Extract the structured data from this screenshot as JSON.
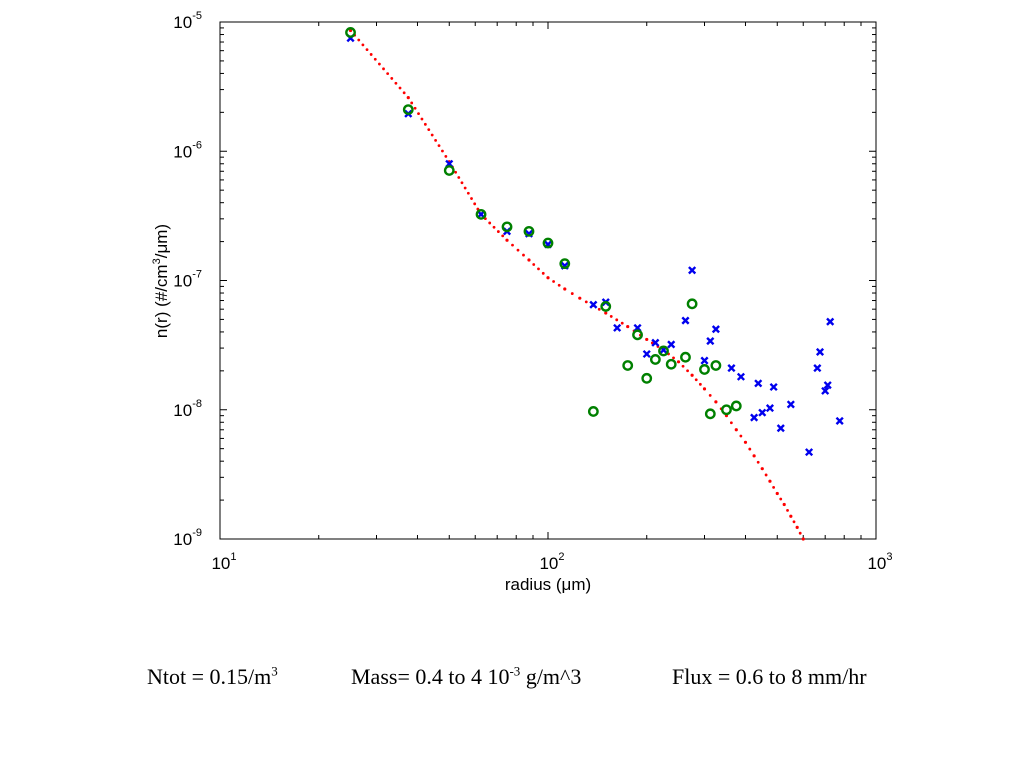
{
  "chart_data": {
    "type": "scatter",
    "xscale": "log",
    "yscale": "log",
    "xlim": [
      10,
      1000
    ],
    "ylim": [
      1e-09,
      1e-05
    ],
    "xlabel": {
      "pre": "radius (",
      "mu": "μ",
      "post": "m)"
    },
    "ylabel": {
      "pre": "n(r) (#/cm",
      "sup": "3",
      "mid": "/",
      "mu": "μ",
      "post": "m)"
    },
    "xticks": [
      {
        "base": "10",
        "exp": "1",
        "value": 10
      },
      {
        "base": "10",
        "exp": "2",
        "value": 100
      },
      {
        "base": "10",
        "exp": "3",
        "value": 1000
      }
    ],
    "yticks": [
      {
        "base": "10",
        "exp": "-5",
        "value": 1e-05
      },
      {
        "base": "10",
        "exp": "-6",
        "value": 1e-06
      },
      {
        "base": "10",
        "exp": "-7",
        "value": 1e-07
      },
      {
        "base": "10",
        "exp": "-8",
        "value": 1e-08
      },
      {
        "base": "10",
        "exp": "-9",
        "value": 1e-09
      }
    ],
    "grid": false,
    "series": [
      {
        "marker": "x",
        "color": "#0000ee",
        "points": [
          [
            25,
            7.5e-06
          ],
          [
            37.5,
            1.95e-06
          ],
          [
            50,
            8e-07
          ],
          [
            62.5,
            3.25e-07
          ],
          [
            75,
            2.4e-07
          ],
          [
            87.5,
            2.3e-07
          ],
          [
            100,
            1.9e-07
          ],
          [
            112.5,
            1.3e-07
          ],
          [
            137.5,
            6.5e-08
          ],
          [
            150,
            6.8e-08
          ],
          [
            162.5,
            4.3e-08
          ],
          [
            187.5,
            4.3e-08
          ],
          [
            200,
            2.7e-08
          ],
          [
            212.5,
            3.3e-08
          ],
          [
            225,
            2.9e-08
          ],
          [
            237.5,
            3.2e-08
          ],
          [
            262.5,
            4.9e-08
          ],
          [
            275,
            1.2e-07
          ],
          [
            300,
            2.4e-08
          ],
          [
            312.5,
            3.4e-08
          ],
          [
            325,
            4.2e-08
          ],
          [
            362.5,
            2.1e-08
          ],
          [
            387.5,
            1.8e-08
          ],
          [
            425,
            8.7e-09
          ],
          [
            437.5,
            1.6e-08
          ],
          [
            450,
            9.5e-09
          ],
          [
            475,
            1.03e-08
          ],
          [
            487.5,
            1.5e-08
          ],
          [
            512.5,
            7.2e-09
          ],
          [
            550,
            1.1e-08
          ],
          [
            625,
            4.7e-09
          ],
          [
            662.5,
            2.1e-08
          ],
          [
            675,
            2.8e-08
          ],
          [
            700,
            1.4e-08
          ],
          [
            712.5,
            1.55e-08
          ],
          [
            725,
            4.8e-08
          ],
          [
            775,
            8.2e-09
          ]
        ]
      },
      {
        "marker": "o",
        "color": "#008000",
        "points": [
          [
            25,
            8.3e-06
          ],
          [
            37.5,
            2.1e-06
          ],
          [
            50,
            7.1e-07
          ],
          [
            62.5,
            3.25e-07
          ],
          [
            75,
            2.6e-07
          ],
          [
            87.5,
            2.4e-07
          ],
          [
            100,
            1.95e-07
          ],
          [
            112.5,
            1.35e-07
          ],
          [
            137.5,
            9.7e-09
          ],
          [
            150,
            6.3e-08
          ],
          [
            175,
            2.2e-08
          ],
          [
            187.5,
            3.8e-08
          ],
          [
            200,
            1.75e-08
          ],
          [
            212.5,
            2.45e-08
          ],
          [
            225,
            2.85e-08
          ],
          [
            237.5,
            2.25e-08
          ],
          [
            262.5,
            2.55e-08
          ],
          [
            275,
            6.6e-08
          ],
          [
            300,
            2.05e-08
          ],
          [
            312.5,
            9.3e-09
          ],
          [
            325,
            2.2e-08
          ],
          [
            350,
            1e-08
          ],
          [
            375,
            1.07e-08
          ]
        ]
      },
      {
        "marker": "dotted-line",
        "color": "#ff0000",
        "points": [
          [
            25,
            8.6e-06
          ],
          [
            37.5,
            2.6e-06
          ],
          [
            50,
            8.3e-07
          ],
          [
            62.5,
            3.25e-07
          ],
          [
            75,
            2.05e-07
          ],
          [
            87.5,
            1.44e-07
          ],
          [
            100,
            1.05e-07
          ],
          [
            112.5,
            8.6e-08
          ],
          [
            125,
            7.3e-08
          ],
          [
            150,
            5.6e-08
          ],
          [
            175,
            4.4e-08
          ],
          [
            200,
            3.5e-08
          ],
          [
            225,
            2.9e-08
          ],
          [
            250,
            2.35e-08
          ],
          [
            275,
            1.85e-08
          ],
          [
            300,
            1.45e-08
          ],
          [
            325,
            1.15e-08
          ],
          [
            350,
            9e-09
          ],
          [
            375,
            7e-09
          ],
          [
            400,
            5.6e-09
          ],
          [
            425,
            4.4e-09
          ],
          [
            450,
            3.5e-09
          ],
          [
            475,
            2.8e-09
          ],
          [
            500,
            2.25e-09
          ],
          [
            525,
            1.85e-09
          ],
          [
            550,
            1.5e-09
          ],
          [
            575,
            1.23e-09
          ],
          [
            600,
            1e-09
          ]
        ]
      }
    ]
  },
  "caption": {
    "ntot_pre": "Ntot = 0.15/m",
    "ntot_sup": "3",
    "mass_pre": "Mass= 0.4 to 4 10",
    "mass_sup": "-3",
    "mass_post": " g/m^3",
    "flux": "Flux = 0.6 to 8 mm/hr"
  }
}
